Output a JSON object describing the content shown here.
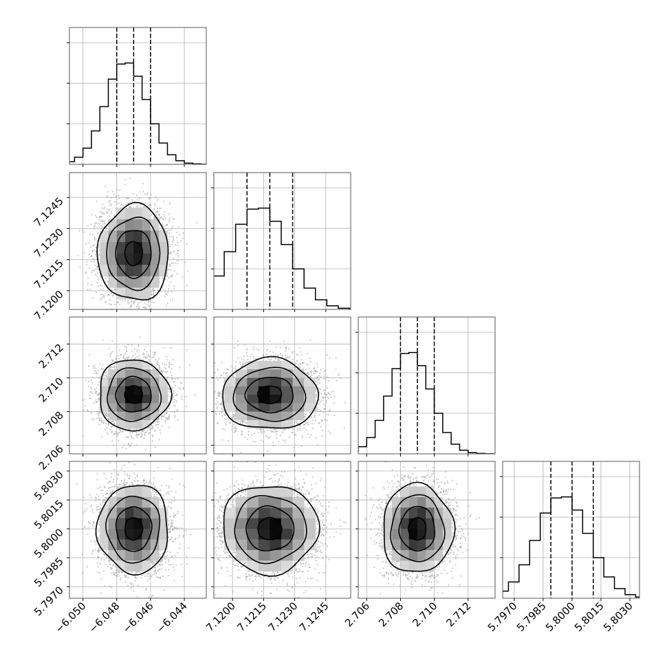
{
  "chart_data": {
    "type": "corner",
    "variables": [
      {
        "range": [
          -6.0508,
          -6.0427
        ],
        "ticks": [
          -6.05,
          -6.048,
          -6.046,
          -6.044
        ],
        "tick_labels": [
          "−6.050",
          "−6.048",
          "−6.046",
          "−6.044"
        ],
        "quantiles": [
          -6.048,
          -6.047,
          -6.046
        ],
        "mean": -6.047,
        "sd": 0.001
      },
      {
        "range": [
          7.1191,
          7.1257
        ],
        "ticks": [
          7.12,
          7.1215,
          7.123,
          7.1245
        ],
        "tick_labels": [
          "7.1200",
          "7.1215",
          "7.1230",
          "7.1245"
        ],
        "quantiles": [
          7.1207,
          7.1218,
          7.1229
        ],
        "mean": 7.1218,
        "sd": 0.0011
      },
      {
        "range": [
          2.7055,
          2.7136
        ],
        "ticks": [
          2.706,
          2.708,
          2.71,
          2.712
        ],
        "tick_labels": [
          "2.706",
          "2.708",
          "2.710",
          "2.712"
        ],
        "quantiles": [
          2.708,
          2.709,
          2.71
        ],
        "mean": 2.709,
        "sd": 0.001
      },
      {
        "range": [
          5.7964,
          5.8035
        ],
        "ticks": [
          5.797,
          5.7985,
          5.8,
          5.8015,
          5.803
        ],
        "tick_labels": [
          "5.7970",
          "5.7985",
          "5.8000",
          "5.8015",
          "5.8030"
        ],
        "quantiles": [
          5.7989,
          5.8,
          5.8011
        ],
        "mean": 5.8,
        "sd": 0.0011
      }
    ],
    "histogram": {
      "bins": 20,
      "histtype": "step",
      "y_scale_max": 1.35,
      "relative_shape": [
        0.002,
        0.008,
        0.025,
        0.07,
        0.16,
        0.33,
        0.57,
        0.84,
        0.99,
        1.0,
        0.87,
        0.64,
        0.4,
        0.21,
        0.095,
        0.036,
        0.012,
        0.004,
        0.001,
        0.0002
      ]
    },
    "contour_levels_sigma": [
      0.5,
      1.0,
      1.5,
      2.0
    ],
    "grid": true,
    "colors": {
      "line": "#000000",
      "scatter": "#9b9b9b",
      "grid": "#b0b0b0",
      "frame": "#555555"
    }
  }
}
